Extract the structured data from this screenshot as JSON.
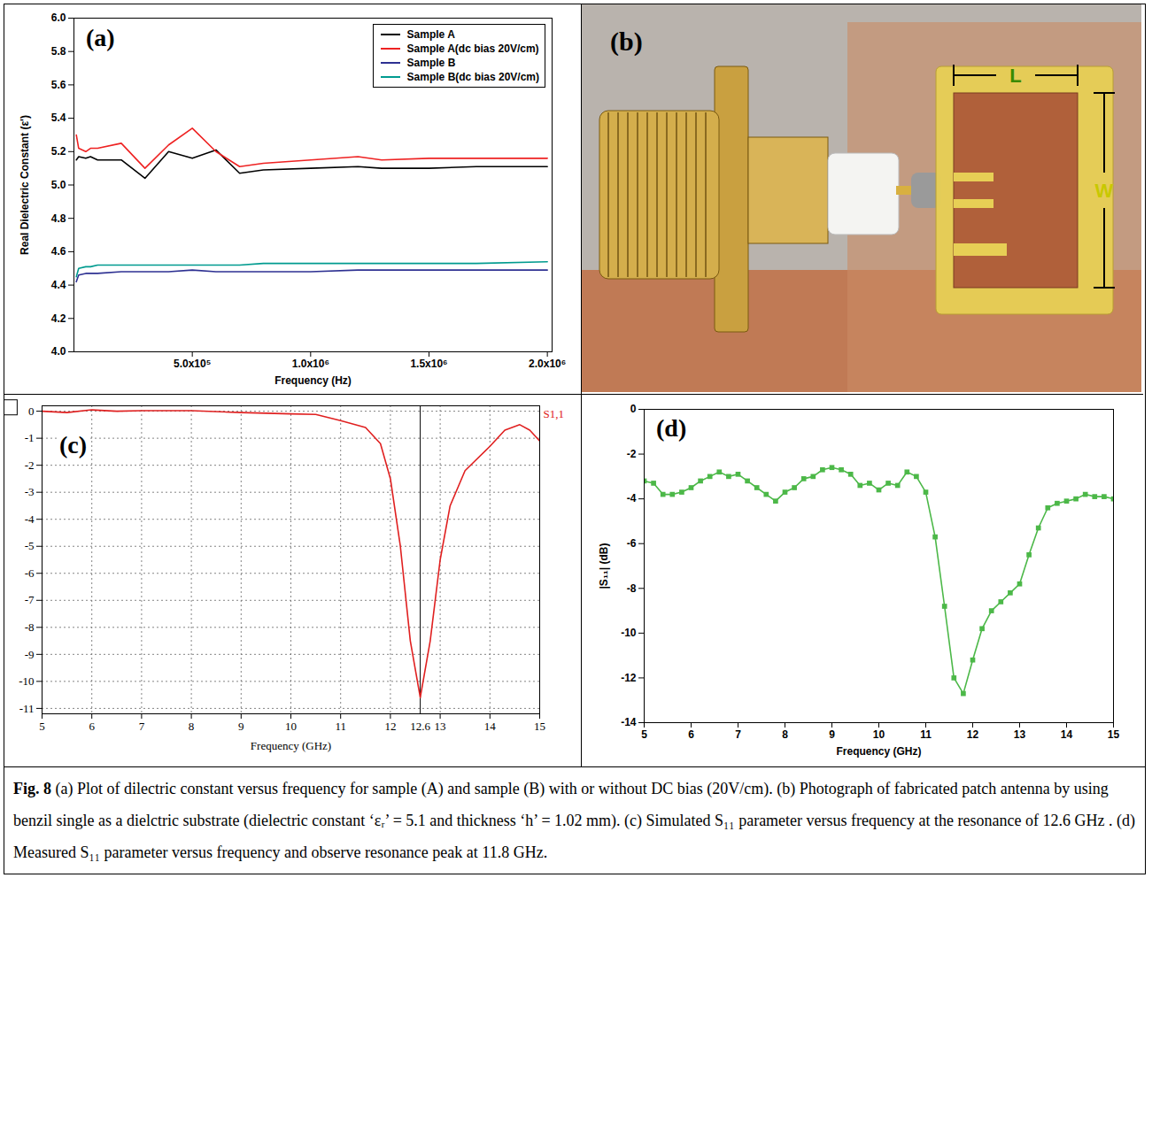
{
  "chart_data": [
    {
      "panel": "(a)",
      "type": "line",
      "x_label": "Frequency (Hz)",
      "y_label": "Real Dielectric Constant (ε')",
      "xlim": [
        0,
        2020000
      ],
      "xticks": [
        {
          "value": 500000,
          "label": "5.0x10⁵"
        },
        {
          "value": 1000000,
          "label": "1.0x10⁶"
        },
        {
          "value": 1500000,
          "label": "1.5x10⁶"
        },
        {
          "value": 2000000,
          "label": "2.0x10⁶"
        }
      ],
      "ylim": [
        4,
        6
      ],
      "yticks": [
        {
          "value": 4,
          "label": "4.0"
        },
        4.2,
        4.4,
        4.6,
        4.8,
        {
          "value": 5,
          "label": "5.0"
        },
        5.2,
        5.4,
        5.6,
        5.8,
        {
          "value": 6,
          "label": "6.0"
        }
      ],
      "legend": "top-right",
      "x": [
        10000,
        20000,
        50000,
        70000,
        100000,
        200000,
        300000,
        400000,
        500000,
        600000,
        700000,
        800000,
        1000000,
        1200000,
        1300000,
        1500000,
        1700000,
        2000000
      ],
      "series": [
        {
          "name": "Sample A",
          "color": "#000000",
          "values": [
            5.15,
            5.17,
            5.16,
            5.17,
            5.15,
            5.15,
            5.04,
            5.2,
            5.16,
            5.21,
            5.07,
            5.09,
            5.1,
            5.11,
            5.1,
            5.1,
            5.11,
            5.11
          ]
        },
        {
          "name": "Sample A(dc bias 20V/cm)",
          "color": "#ee2222",
          "values": [
            5.3,
            5.22,
            5.2,
            5.22,
            5.22,
            5.25,
            5.1,
            5.24,
            5.34,
            5.2,
            5.11,
            5.13,
            5.15,
            5.17,
            5.15,
            5.16,
            5.16,
            5.16
          ]
        },
        {
          "name": "Sample B",
          "color": "#2e3192",
          "values": [
            4.42,
            4.46,
            4.47,
            4.47,
            4.47,
            4.48,
            4.48,
            4.48,
            4.49,
            4.48,
            4.48,
            4.48,
            4.48,
            4.49,
            4.49,
            4.49,
            4.49,
            4.49
          ]
        },
        {
          "name": "Sample B(dc bias 20V/cm)",
          "color": "#009b8f",
          "values": [
            4.45,
            4.5,
            4.51,
            4.51,
            4.52,
            4.52,
            4.52,
            4.52,
            4.52,
            4.52,
            4.52,
            4.53,
            4.53,
            4.53,
            4.53,
            4.53,
            4.53,
            4.54
          ]
        }
      ]
    },
    {
      "panel": "(c)",
      "type": "line",
      "x_label": "Frequency (GHz)",
      "grid": true,
      "legend": "right",
      "xlim": [
        5,
        15
      ],
      "xticks": [
        5,
        6,
        7,
        8,
        9,
        10,
        11,
        12,
        13,
        14,
        15
      ],
      "ylim": [
        -11.2,
        0.2
      ],
      "yticks": [
        0,
        -1,
        -2,
        -3,
        -4,
        -5,
        -6,
        -7,
        -8,
        -9,
        -10,
        -11
      ],
      "annotations": [
        {
          "x": 12.6,
          "label": "12.6"
        }
      ],
      "x": [
        5,
        5.5,
        6,
        6.5,
        7,
        8,
        9,
        10,
        10.5,
        11,
        11.5,
        11.8,
        12,
        12.2,
        12.4,
        12.6,
        12.8,
        13,
        13.2,
        13.5,
        14,
        14.3,
        14.6,
        14.8,
        15
      ],
      "series": [
        {
          "name": "S1,1",
          "color": "#e02020",
          "values": [
            0,
            -0.05,
            0.05,
            0,
            0.02,
            0.02,
            -0.05,
            -0.1,
            -0.12,
            -0.35,
            -0.6,
            -1.2,
            -2.5,
            -5,
            -8.5,
            -10.6,
            -8.5,
            -5.5,
            -3.5,
            -2.2,
            -1.3,
            -0.7,
            -0.5,
            -0.7,
            -1.1
          ]
        }
      ]
    },
    {
      "panel": "(d)",
      "type": "line",
      "x_label": "Frequency (GHz)",
      "y_label": "|S₁₁| (dB)",
      "marker": "square",
      "xlim": [
        5,
        15
      ],
      "xticks": [
        5,
        6,
        7,
        8,
        9,
        10,
        11,
        12,
        13,
        14,
        15
      ],
      "ylim": [
        -14,
        0
      ],
      "yticks": [
        0,
        -2,
        -4,
        -6,
        -8,
        -10,
        -12,
        -14
      ],
      "x": [
        5,
        5.2,
        5.4,
        5.6,
        5.8,
        6,
        6.2,
        6.4,
        6.6,
        6.8,
        7,
        7.2,
        7.4,
        7.6,
        7.8,
        8,
        8.2,
        8.4,
        8.6,
        8.8,
        9,
        9.2,
        9.4,
        9.6,
        9.8,
        10,
        10.2,
        10.4,
        10.6,
        10.8,
        11,
        11.2,
        11.4,
        11.6,
        11.8,
        12,
        12.2,
        12.4,
        12.6,
        12.8,
        13,
        13.2,
        13.4,
        13.6,
        13.8,
        14,
        14.2,
        14.4,
        14.6,
        14.8,
        15
      ],
      "series": [
        {
          "color": "#4cb848",
          "values": [
            -3.2,
            -3.3,
            -3.8,
            -3.8,
            -3.7,
            -3.5,
            -3.2,
            -3,
            -2.8,
            -3,
            -2.9,
            -3.2,
            -3.5,
            -3.8,
            -4.1,
            -3.7,
            -3.5,
            -3.1,
            -3,
            -2.7,
            -2.6,
            -2.7,
            -2.9,
            -3.4,
            -3.3,
            -3.6,
            -3.3,
            -3.4,
            -2.8,
            -3,
            -3.7,
            -5.7,
            -8.8,
            -12,
            -12.7,
            -11.2,
            -9.8,
            -9,
            -8.6,
            -8.2,
            -7.8,
            -6.5,
            -5.3,
            -4.4,
            -4.2,
            -4.1,
            -4,
            -3.8,
            -3.9,
            -3.9,
            -4
          ]
        }
      ]
    }
  ],
  "photo": {
    "panel": "(b)",
    "labels": {
      "length": "L",
      "width": "W"
    }
  },
  "caption": {
    "label": "Fig. 8",
    "text": "(a) Plot of dilectric constant versus frequency for sample (A) and sample (B) with or without DC bias (20V/cm). (b) Photograph of fabricated patch antenna by using benzil single as a dielctric substrate (dielectric constant ‘εᵣ’ = 5.1 and thickness ‘h’ = 1.02 mm). (c) Simulated S₁₁ parameter versus frequency at the resonance of 12.6 GHz . (d) Measured S₁₁ parameter versus frequency and observe resonance peak at 11.8 GHz."
  }
}
